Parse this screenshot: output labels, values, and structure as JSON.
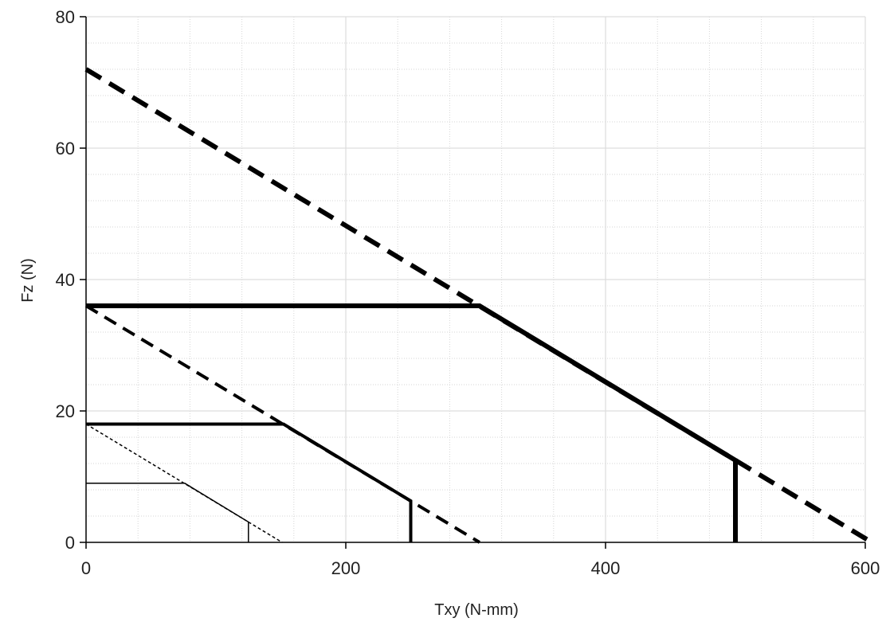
{
  "chart_data": {
    "type": "line",
    "title": "",
    "xlabel": "Txy (N-mm)",
    "ylabel": "Fz (N)",
    "xlim": [
      0,
      600
    ],
    "ylim": [
      0,
      80
    ],
    "x_ticks": [
      0,
      200,
      400,
      600
    ],
    "y_ticks": [
      0,
      20,
      40,
      60,
      80
    ],
    "x_tick_labels": [
      "0",
      "200",
      "400",
      "600"
    ],
    "y_tick_labels": [
      "0",
      "20",
      "40",
      "60",
      "80"
    ],
    "grid": true,
    "minor_grid": true,
    "legend": "none",
    "series": [
      {
        "style": "dashed",
        "weight": "heavy",
        "color": "#000000",
        "points": [
          [
            0,
            72
          ],
          [
            605,
            0
          ]
        ]
      },
      {
        "style": "solid",
        "weight": "heavy",
        "color": "#000000",
        "points": [
          [
            0,
            36
          ],
          [
            303,
            36
          ],
          [
            500,
            12.5
          ],
          [
            500,
            0
          ]
        ]
      },
      {
        "style": "dashed",
        "weight": "medium",
        "color": "#000000",
        "points": [
          [
            0,
            36
          ],
          [
            303,
            0
          ]
        ]
      },
      {
        "style": "solid",
        "weight": "medium",
        "color": "#000000",
        "points": [
          [
            0,
            18
          ],
          [
            152,
            18
          ],
          [
            250,
            6.3
          ],
          [
            250,
            0
          ]
        ]
      },
      {
        "style": "dashed",
        "weight": "light",
        "color": "#000000",
        "points": [
          [
            0,
            18
          ],
          [
            151,
            0
          ]
        ]
      },
      {
        "style": "solid",
        "weight": "light",
        "color": "#000000",
        "points": [
          [
            0,
            9
          ],
          [
            76,
            9
          ],
          [
            125,
            3.1
          ],
          [
            125,
            0
          ]
        ]
      }
    ]
  }
}
